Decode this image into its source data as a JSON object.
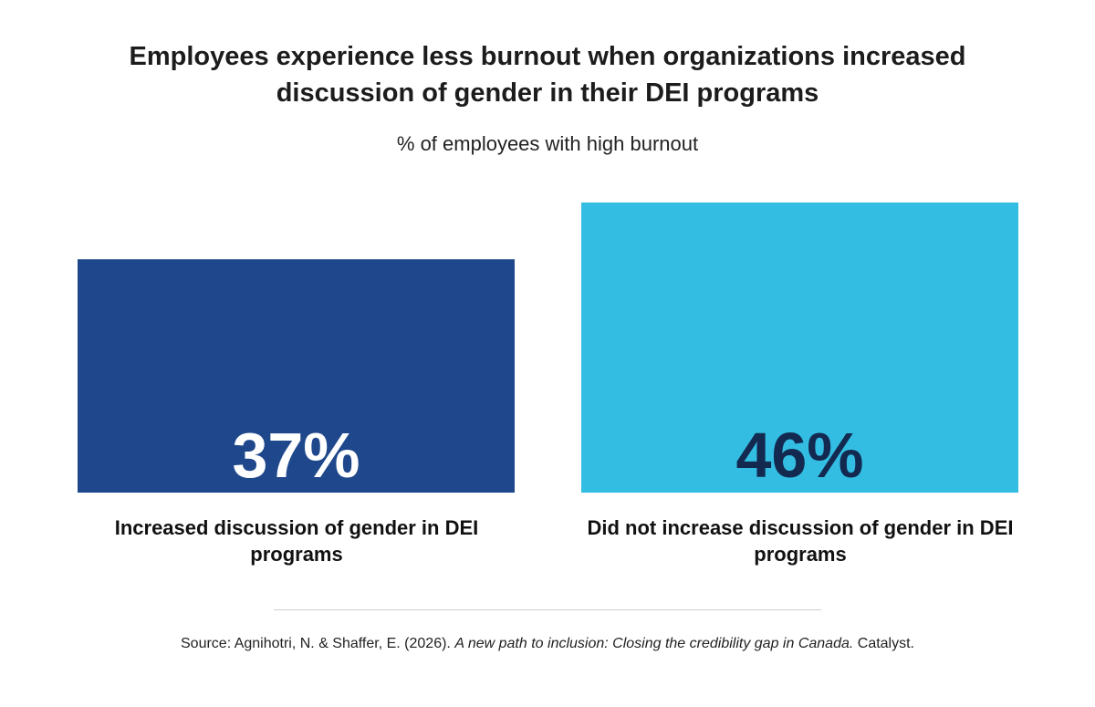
{
  "chart_data": {
    "type": "bar",
    "title": "Employees experience less burnout when organizations increased discussion of gender in their DEI programs",
    "subtitle": "% of employees with high burnout",
    "categories": [
      "Increased discussion of gender in DEI programs",
      "Did not increase discussion of gender in DEI programs"
    ],
    "values": [
      37,
      46
    ],
    "value_labels": [
      "37%",
      "46%"
    ],
    "bar_colors": [
      "#1f488c",
      "#33bde3"
    ],
    "value_label_colors": [
      "#ffffff",
      "#13294f"
    ],
    "ylim": [
      0,
      46
    ],
    "grid": false,
    "legend": "none"
  },
  "source": {
    "prefix": "Source: Agnihotri, N. & Shaffer, E. (2026). ",
    "title": "A new path to inclusion: Closing the credibility gap in Canada.",
    "suffix": " Catalyst."
  }
}
